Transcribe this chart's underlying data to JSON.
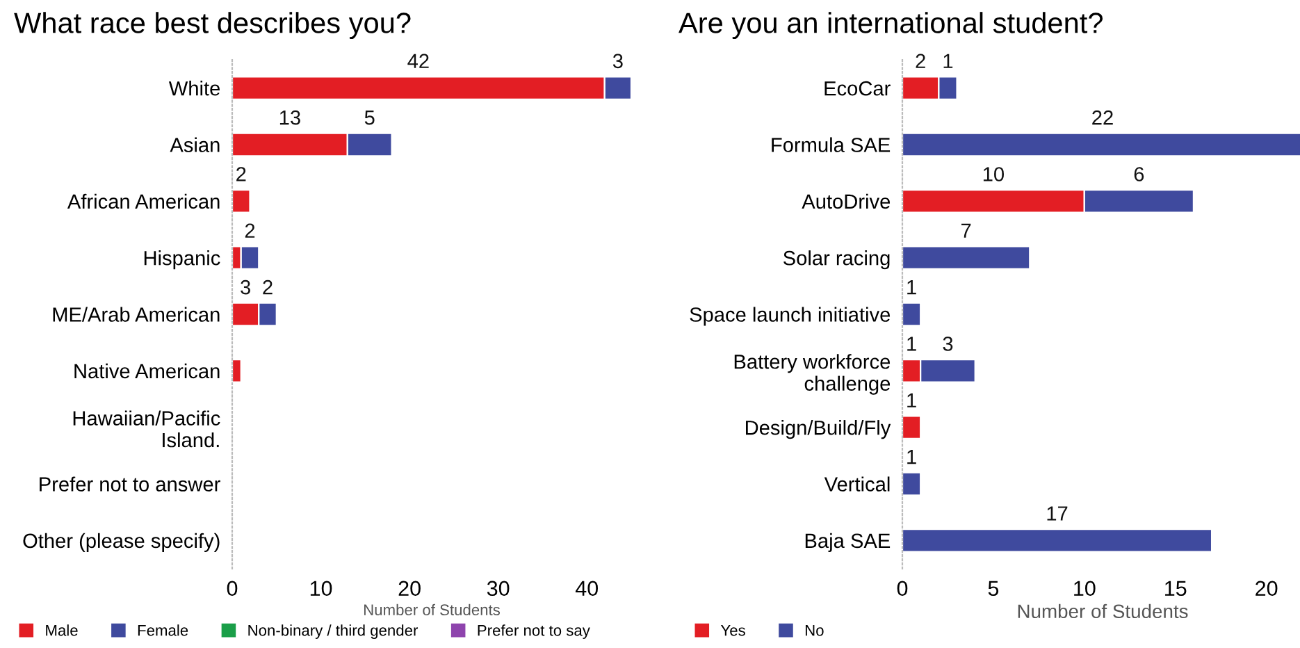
{
  "chart_data": [
    {
      "type": "bar",
      "orientation": "horizontal",
      "stacked": true,
      "title": "What race best describes you?",
      "xlabel": "Number of Students",
      "categories": [
        "White",
        "Asian",
        "African American",
        "Hispanic",
        "ME/Arab American",
        "Native American",
        "Hawaiian/Pacific\nIsland.",
        "Prefer not to answer",
        "Other (please specify)"
      ],
      "series": [
        {
          "name": "Male",
          "color": "#e31e24",
          "values": [
            42,
            13,
            2,
            1,
            3,
            1,
            0,
            0,
            0
          ],
          "value_labels": [
            "42",
            "13",
            "2",
            null,
            "3",
            null,
            null,
            null,
            null
          ]
        },
        {
          "name": "Female",
          "color": "#3f4a9e",
          "values": [
            3,
            5,
            0,
            2,
            2,
            0,
            0,
            0,
            0
          ],
          "value_labels": [
            "3",
            "5",
            null,
            "2",
            "2",
            null,
            null,
            null,
            null
          ]
        },
        {
          "name": "Non-binary / third gender",
          "color": "#1a9e48",
          "values": [
            0,
            0,
            0,
            0,
            0,
            0,
            0,
            0,
            0
          ]
        },
        {
          "name": "Prefer not to say",
          "color": "#8e44ad",
          "values": [
            0,
            0,
            0,
            0,
            0,
            0,
            0,
            0,
            0
          ]
        }
      ],
      "xlim": [
        0,
        45
      ],
      "xticks": [
        0,
        10,
        20,
        30,
        40
      ],
      "grid": false,
      "legend": "bottom"
    },
    {
      "type": "bar",
      "orientation": "horizontal",
      "stacked": true,
      "title": "Are you an international student?",
      "xlabel": "Number of Students",
      "categories": [
        "EcoCar",
        "Formula SAE",
        "AutoDrive",
        "Solar racing",
        "Space launch initiative",
        "Battery workforce\nchallenge",
        "Design/Build/Fly",
        "Vertical",
        "Baja SAE"
      ],
      "series": [
        {
          "name": "Yes",
          "color": "#e31e24",
          "values": [
            2,
            0,
            10,
            0,
            0,
            1,
            1,
            0,
            0
          ],
          "value_labels": [
            "2",
            null,
            "10",
            null,
            null,
            "1",
            "1",
            null,
            null
          ]
        },
        {
          "name": "No",
          "color": "#3f4a9e",
          "values": [
            1,
            22,
            6,
            7,
            1,
            3,
            0,
            1,
            17
          ],
          "value_labels": [
            "1",
            "22",
            "6",
            "7",
            "1",
            "3",
            null,
            "1",
            "17"
          ]
        }
      ],
      "xlim": [
        0,
        22
      ],
      "xticks": [
        0,
        5,
        10,
        15,
        20
      ],
      "grid": false,
      "legend": "bottom"
    }
  ]
}
